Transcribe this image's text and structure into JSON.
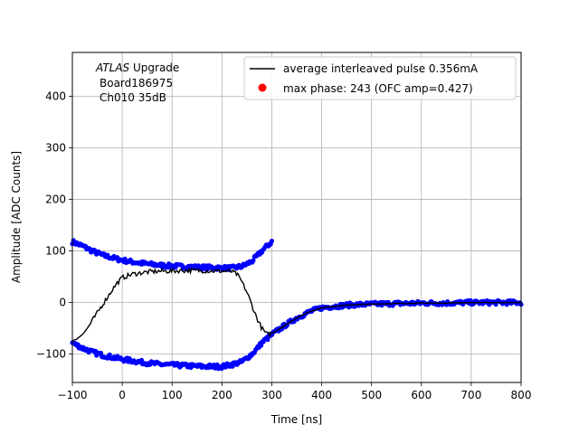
{
  "chart_data": {
    "type": "scatter",
    "xlabel": "Time [ns]",
    "ylabel": "Amplitude [ADC Counts]",
    "xlim": [
      -100,
      800
    ],
    "ylim": [
      -155,
      485
    ],
    "xticks": [
      -100,
      0,
      100,
      200,
      300,
      400,
      500,
      600,
      700,
      800
    ],
    "yticks": [
      -100,
      0,
      100,
      200,
      300,
      400
    ],
    "grid": true,
    "legend_position": "top-right",
    "annotation": {
      "line1_italic": "ATLAS",
      "line1_rest": " Upgrade",
      "line2": "Board186975",
      "line3": "Ch010 35dB"
    },
    "series": [
      {
        "name": "average interleaved pulse 0.356mA",
        "kind": "line",
        "color": "#000000",
        "x": [
          -100,
          -90,
          -80,
          -70,
          -60,
          -50,
          -40,
          -30,
          -20,
          -10,
          0,
          20,
          40,
          60,
          80,
          100,
          120,
          140,
          160,
          180,
          200,
          220,
          230,
          240,
          250,
          260,
          270,
          280,
          290,
          300,
          325,
          350,
          375,
          400,
          450,
          500,
          550,
          600,
          650,
          700,
          750,
          800
        ],
        "y": [
          -75,
          -70,
          -62,
          -50,
          -35,
          -20,
          -5,
          10,
          25,
          38,
          48,
          55,
          58,
          60,
          61,
          61,
          62,
          62,
          62,
          61,
          61,
          60,
          55,
          40,
          20,
          -5,
          -30,
          -50,
          -62,
          -60,
          -45,
          -30,
          -18,
          -10,
          -5,
          -3,
          -2,
          -1,
          -1,
          0,
          0,
          0
        ]
      },
      {
        "name": "max phase: 243 (OFC amp=0.427)",
        "kind": "point",
        "color": "#ff0000",
        "x": [],
        "y": []
      },
      {
        "name": "",
        "kind": "scatter",
        "color": "#0000ff",
        "segments": [
          {
            "x": [
              -100,
              -80,
              -60,
              -40,
              -20,
              0,
              20,
              40,
              60,
              80,
              100,
              120,
              140,
              160,
              180,
              200,
              220,
              240,
              260,
              280,
              300
            ],
            "y": [
              118,
              110,
              100,
              92,
              87,
              82,
              79,
              76,
              74,
              72,
              71,
              70,
              69,
              68,
              68,
              67,
              67,
              70,
              80,
              100,
              118
            ]
          },
          {
            "x": [
              -100,
              -80,
              -60,
              -40,
              -20,
              0,
              20,
              40,
              60,
              80,
              100,
              120,
              140,
              160,
              180,
              200,
              220,
              240,
              260,
              270,
              280,
              300,
              325,
              350,
              375,
              400,
              450,
              500,
              550,
              600,
              650,
              700,
              750,
              800
            ],
            "y": [
              -78,
              -88,
              -96,
              -102,
              -106,
              -110,
              -113,
              -116,
              -118,
              -120,
              -121,
              -122,
              -123,
              -124,
              -124,
              -124,
              -120,
              -115,
              -100,
              -90,
              -78,
              -62,
              -45,
              -30,
              -18,
              -10,
              -5,
              -3,
              -2,
              -1,
              -1,
              0,
              0,
              0
            ]
          }
        ]
      }
    ]
  }
}
